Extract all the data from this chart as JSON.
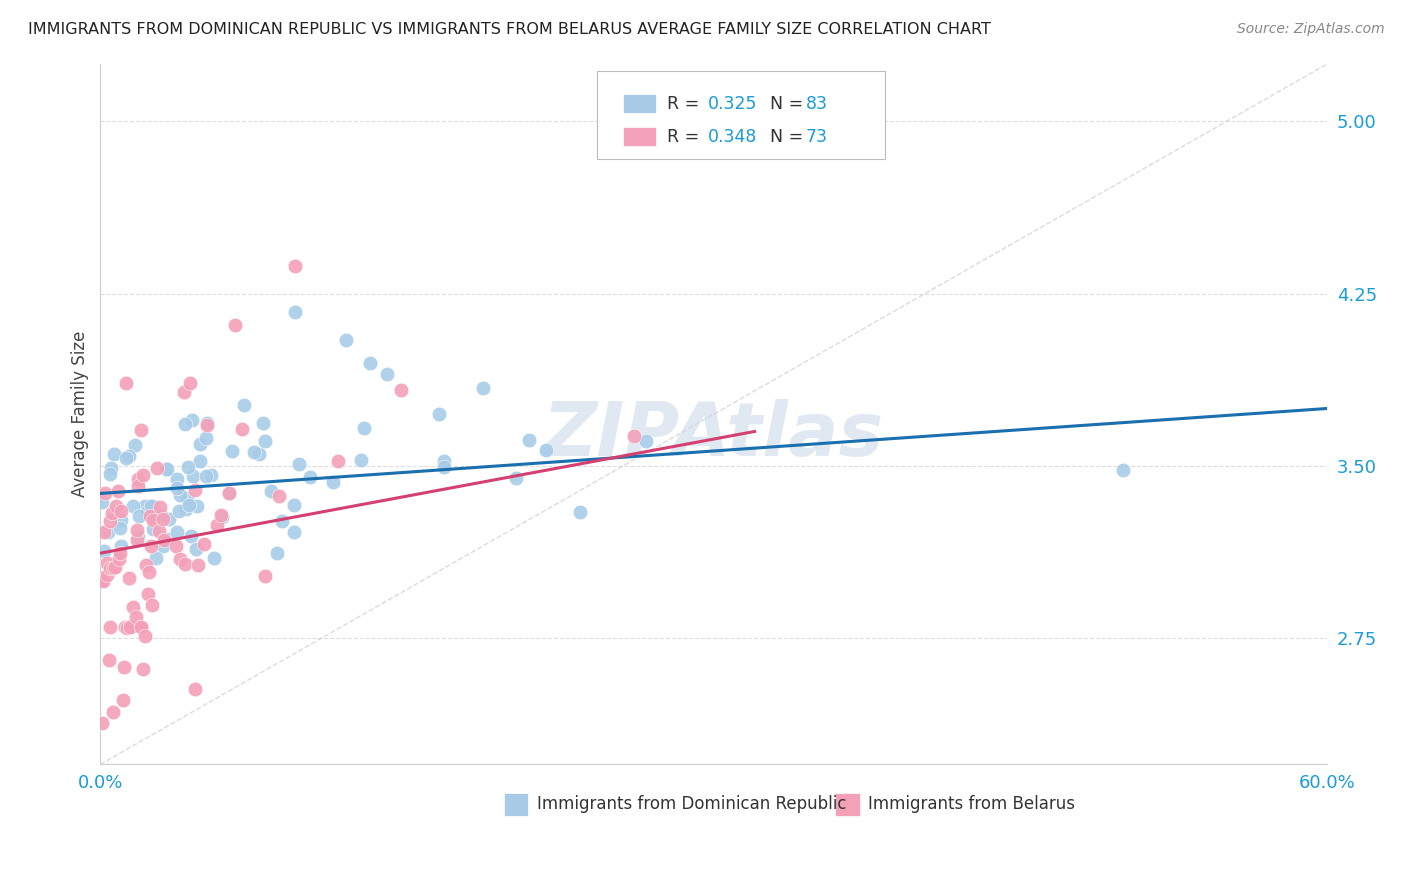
{
  "title": "IMMIGRANTS FROM DOMINICAN REPUBLIC VS IMMIGRANTS FROM BELARUS AVERAGE FAMILY SIZE CORRELATION CHART",
  "source": "Source: ZipAtlas.com",
  "ylabel": "Average Family Size",
  "yticks": [
    2.75,
    3.5,
    4.25,
    5.0
  ],
  "ylim": [
    2.2,
    5.25
  ],
  "xlim": [
    0.0,
    0.6
  ],
  "dot_color_blue": "#a8cce8",
  "dot_color_pink": "#f4a0b8",
  "line_color_blue": "#1a6faf",
  "line_color_pink": "#d44070",
  "diagonal_color": "#cccccc",
  "watermark": "ZIPAtlas",
  "watermark_color": "#c8d8e8",
  "background_color": "#ffffff",
  "grid_color": "#dddddd",
  "text_color_blue": "#1a9cd8",
  "text_color_dark": "#333333",
  "blue_trend_x": [
    0.0,
    0.6
  ],
  "blue_trend_y": [
    3.38,
    3.75
  ],
  "pink_trend_x": [
    0.0,
    0.32
  ],
  "pink_trend_y": [
    3.12,
    3.65
  ]
}
